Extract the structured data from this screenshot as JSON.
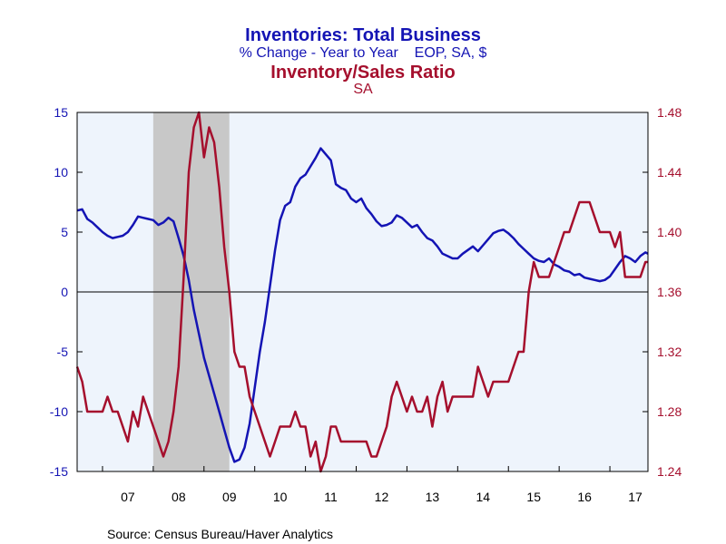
{
  "chart_data": {
    "type": "line",
    "title_line1": "Inventories: Total Business",
    "subtitle_line1": "% Change - Year to Year    EOP, SA, $",
    "title_line2": "Inventory/Sales Ratio",
    "subtitle_line2": "SA",
    "source": "Source:  Census Bureau/Haver Analytics",
    "x_tick_labels": [
      "07",
      "08",
      "09",
      "10",
      "11",
      "12",
      "13",
      "14",
      "15",
      "16",
      "17"
    ],
    "x_range": [
      2006.5,
      2017.75
    ],
    "left_axis": {
      "ylim": [
        -15,
        15
      ],
      "ticks": [
        "15",
        "10",
        "5",
        "0",
        "-5",
        "-10",
        "-15"
      ],
      "color": "#1414b4"
    },
    "right_axis": {
      "ylim": [
        1.24,
        1.48
      ],
      "ticks": [
        "1.48",
        "1.44",
        "1.40",
        "1.36",
        "1.32",
        "1.28",
        "1.24"
      ],
      "color": "#a50f2d"
    },
    "recession_shading": {
      "start": 2008.0,
      "end": 2009.5,
      "color": "#c8c8c8"
    },
    "zero_line": true,
    "series": [
      {
        "axis": "left",
        "color": "#1414b4",
        "points": [
          [
            2006.5,
            6.8
          ],
          [
            2006.6,
            6.9
          ],
          [
            2006.7,
            6.1
          ],
          [
            2006.8,
            5.8
          ],
          [
            2006.9,
            5.4
          ],
          [
            2007.0,
            5.0
          ],
          [
            2007.1,
            4.7
          ],
          [
            2007.2,
            4.5
          ],
          [
            2007.3,
            4.6
          ],
          [
            2007.4,
            4.7
          ],
          [
            2007.5,
            5.0
          ],
          [
            2007.6,
            5.6
          ],
          [
            2007.7,
            6.3
          ],
          [
            2007.8,
            6.2
          ],
          [
            2007.9,
            6.1
          ],
          [
            2008.0,
            6.0
          ],
          [
            2008.1,
            5.6
          ],
          [
            2008.2,
            5.8
          ],
          [
            2008.3,
            6.2
          ],
          [
            2008.4,
            5.9
          ],
          [
            2008.5,
            4.5
          ],
          [
            2008.6,
            3.0
          ],
          [
            2008.7,
            1.0
          ],
          [
            2008.8,
            -1.5
          ],
          [
            2008.9,
            -3.5
          ],
          [
            2009.0,
            -5.5
          ],
          [
            2009.1,
            -7.0
          ],
          [
            2009.2,
            -8.5
          ],
          [
            2009.3,
            -10.0
          ],
          [
            2009.4,
            -11.5
          ],
          [
            2009.5,
            -13.0
          ],
          [
            2009.6,
            -14.2
          ],
          [
            2009.7,
            -14.0
          ],
          [
            2009.8,
            -13.0
          ],
          [
            2009.9,
            -11.0
          ],
          [
            2010.0,
            -8.0
          ],
          [
            2010.1,
            -5.0
          ],
          [
            2010.2,
            -2.5
          ],
          [
            2010.3,
            0.5
          ],
          [
            2010.4,
            3.5
          ],
          [
            2010.5,
            6.0
          ],
          [
            2010.6,
            7.2
          ],
          [
            2010.7,
            7.5
          ],
          [
            2010.8,
            8.8
          ],
          [
            2010.9,
            9.5
          ],
          [
            2011.0,
            9.8
          ],
          [
            2011.1,
            10.5
          ],
          [
            2011.2,
            11.2
          ],
          [
            2011.3,
            12.0
          ],
          [
            2011.4,
            11.5
          ],
          [
            2011.5,
            11.0
          ],
          [
            2011.6,
            9.0
          ],
          [
            2011.7,
            8.7
          ],
          [
            2011.8,
            8.5
          ],
          [
            2011.9,
            7.8
          ],
          [
            2012.0,
            7.5
          ],
          [
            2012.1,
            7.8
          ],
          [
            2012.2,
            7.0
          ],
          [
            2012.3,
            6.5
          ],
          [
            2012.4,
            5.9
          ],
          [
            2012.5,
            5.5
          ],
          [
            2012.6,
            5.6
          ],
          [
            2012.7,
            5.8
          ],
          [
            2012.8,
            6.4
          ],
          [
            2012.9,
            6.2
          ],
          [
            2013.0,
            5.8
          ],
          [
            2013.1,
            5.4
          ],
          [
            2013.2,
            5.6
          ],
          [
            2013.3,
            5.0
          ],
          [
            2013.4,
            4.5
          ],
          [
            2013.5,
            4.3
          ],
          [
            2013.6,
            3.8
          ],
          [
            2013.7,
            3.2
          ],
          [
            2013.8,
            3.0
          ],
          [
            2013.9,
            2.8
          ],
          [
            2014.0,
            2.8
          ],
          [
            2014.1,
            3.2
          ],
          [
            2014.2,
            3.5
          ],
          [
            2014.3,
            3.8
          ],
          [
            2014.4,
            3.4
          ],
          [
            2014.5,
            3.9
          ],
          [
            2014.6,
            4.4
          ],
          [
            2014.7,
            4.9
          ],
          [
            2014.8,
            5.1
          ],
          [
            2014.9,
            5.2
          ],
          [
            2015.0,
            4.9
          ],
          [
            2015.1,
            4.5
          ],
          [
            2015.2,
            4.0
          ],
          [
            2015.3,
            3.6
          ],
          [
            2015.4,
            3.2
          ],
          [
            2015.5,
            2.8
          ],
          [
            2015.6,
            2.6
          ],
          [
            2015.7,
            2.5
          ],
          [
            2015.8,
            2.8
          ],
          [
            2015.9,
            2.3
          ],
          [
            2016.0,
            2.1
          ],
          [
            2016.1,
            1.8
          ],
          [
            2016.2,
            1.7
          ],
          [
            2016.3,
            1.4
          ],
          [
            2016.4,
            1.5
          ],
          [
            2016.5,
            1.2
          ],
          [
            2016.6,
            1.1
          ],
          [
            2016.7,
            1.0
          ],
          [
            2016.8,
            0.9
          ],
          [
            2016.9,
            1.0
          ],
          [
            2017.0,
            1.3
          ],
          [
            2017.1,
            1.9
          ],
          [
            2017.2,
            2.5
          ],
          [
            2017.3,
            3.0
          ],
          [
            2017.4,
            2.8
          ],
          [
            2017.5,
            2.5
          ],
          [
            2017.6,
            3.0
          ],
          [
            2017.7,
            3.3
          ],
          [
            2017.75,
            3.2
          ]
        ]
      },
      {
        "axis": "right",
        "color": "#a50f2d",
        "points": [
          [
            2006.5,
            1.31
          ],
          [
            2006.6,
            1.3
          ],
          [
            2006.7,
            1.28
          ],
          [
            2006.8,
            1.28
          ],
          [
            2006.9,
            1.28
          ],
          [
            2007.0,
            1.28
          ],
          [
            2007.1,
            1.29
          ],
          [
            2007.2,
            1.28
          ],
          [
            2007.3,
            1.28
          ],
          [
            2007.4,
            1.27
          ],
          [
            2007.5,
            1.26
          ],
          [
            2007.6,
            1.28
          ],
          [
            2007.7,
            1.27
          ],
          [
            2007.8,
            1.29
          ],
          [
            2007.9,
            1.28
          ],
          [
            2008.0,
            1.27
          ],
          [
            2008.1,
            1.26
          ],
          [
            2008.2,
            1.25
          ],
          [
            2008.3,
            1.26
          ],
          [
            2008.4,
            1.28
          ],
          [
            2008.5,
            1.31
          ],
          [
            2008.6,
            1.37
          ],
          [
            2008.7,
            1.44
          ],
          [
            2008.8,
            1.47
          ],
          [
            2008.9,
            1.48
          ],
          [
            2009.0,
            1.45
          ],
          [
            2009.1,
            1.47
          ],
          [
            2009.2,
            1.46
          ],
          [
            2009.3,
            1.43
          ],
          [
            2009.4,
            1.39
          ],
          [
            2009.5,
            1.36
          ],
          [
            2009.6,
            1.32
          ],
          [
            2009.7,
            1.31
          ],
          [
            2009.8,
            1.31
          ],
          [
            2009.9,
            1.29
          ],
          [
            2010.0,
            1.28
          ],
          [
            2010.1,
            1.27
          ],
          [
            2010.2,
            1.26
          ],
          [
            2010.3,
            1.25
          ],
          [
            2010.4,
            1.26
          ],
          [
            2010.5,
            1.27
          ],
          [
            2010.6,
            1.27
          ],
          [
            2010.7,
            1.27
          ],
          [
            2010.8,
            1.28
          ],
          [
            2010.9,
            1.27
          ],
          [
            2011.0,
            1.27
          ],
          [
            2011.1,
            1.25
          ],
          [
            2011.2,
            1.26
          ],
          [
            2011.3,
            1.24
          ],
          [
            2011.4,
            1.25
          ],
          [
            2011.5,
            1.27
          ],
          [
            2011.6,
            1.27
          ],
          [
            2011.7,
            1.26
          ],
          [
            2011.8,
            1.26
          ],
          [
            2011.9,
            1.26
          ],
          [
            2012.0,
            1.26
          ],
          [
            2012.1,
            1.26
          ],
          [
            2012.2,
            1.26
          ],
          [
            2012.3,
            1.25
          ],
          [
            2012.4,
            1.25
          ],
          [
            2012.5,
            1.26
          ],
          [
            2012.6,
            1.27
          ],
          [
            2012.7,
            1.29
          ],
          [
            2012.8,
            1.3
          ],
          [
            2012.9,
            1.29
          ],
          [
            2013.0,
            1.28
          ],
          [
            2013.1,
            1.29
          ],
          [
            2013.2,
            1.28
          ],
          [
            2013.3,
            1.28
          ],
          [
            2013.4,
            1.29
          ],
          [
            2013.5,
            1.27
          ],
          [
            2013.6,
            1.29
          ],
          [
            2013.7,
            1.3
          ],
          [
            2013.8,
            1.28
          ],
          [
            2013.9,
            1.29
          ],
          [
            2014.0,
            1.29
          ],
          [
            2014.1,
            1.29
          ],
          [
            2014.2,
            1.29
          ],
          [
            2014.3,
            1.29
          ],
          [
            2014.4,
            1.31
          ],
          [
            2014.5,
            1.3
          ],
          [
            2014.6,
            1.29
          ],
          [
            2014.7,
            1.3
          ],
          [
            2014.8,
            1.3
          ],
          [
            2014.9,
            1.3
          ],
          [
            2015.0,
            1.3
          ],
          [
            2015.1,
            1.31
          ],
          [
            2015.2,
            1.32
          ],
          [
            2015.3,
            1.32
          ],
          [
            2015.4,
            1.36
          ],
          [
            2015.5,
            1.38
          ],
          [
            2015.6,
            1.37
          ],
          [
            2015.7,
            1.37
          ],
          [
            2015.8,
            1.37
          ],
          [
            2015.9,
            1.38
          ],
          [
            2016.0,
            1.39
          ],
          [
            2016.1,
            1.4
          ],
          [
            2016.2,
            1.4
          ],
          [
            2016.3,
            1.41
          ],
          [
            2016.4,
            1.42
          ],
          [
            2016.5,
            1.42
          ],
          [
            2016.6,
            1.42
          ],
          [
            2016.7,
            1.41
          ],
          [
            2016.8,
            1.4
          ],
          [
            2016.9,
            1.4
          ],
          [
            2017.0,
            1.4
          ],
          [
            2017.1,
            1.39
          ],
          [
            2017.2,
            1.4
          ],
          [
            2017.3,
            1.37
          ],
          [
            2017.4,
            1.37
          ],
          [
            2017.5,
            1.37
          ],
          [
            2017.6,
            1.37
          ],
          [
            2017.7,
            1.38
          ],
          [
            2017.75,
            1.38
          ]
        ]
      }
    ]
  }
}
